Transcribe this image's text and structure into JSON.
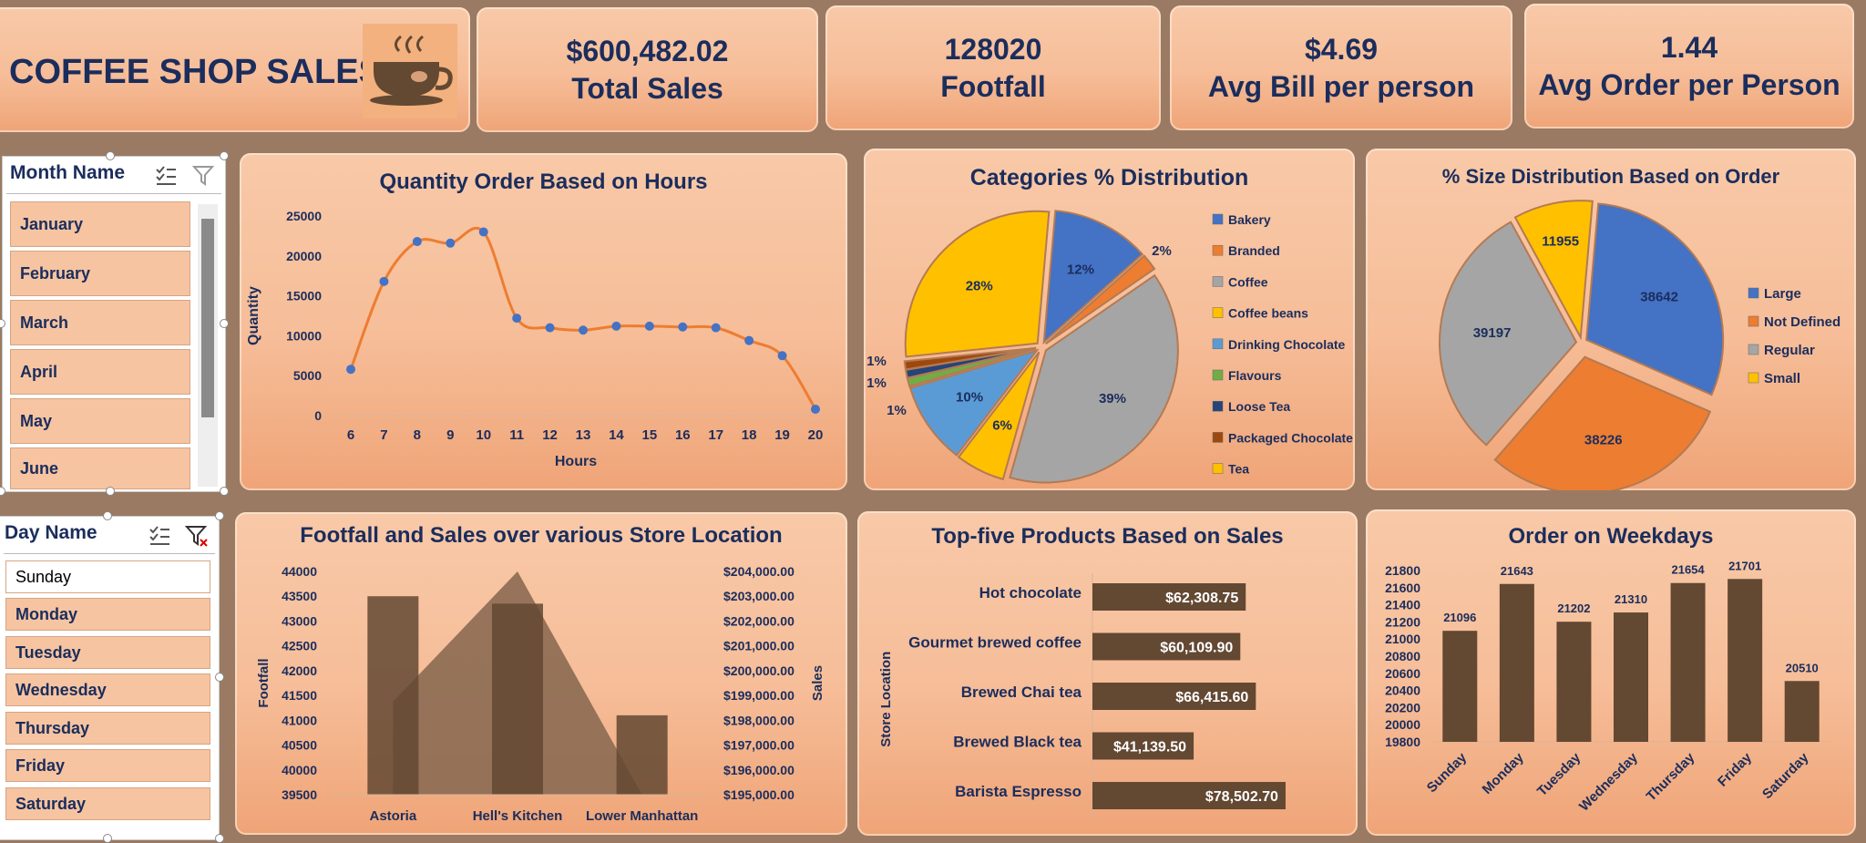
{
  "header": {
    "title": "COFFEE SHOP SALES"
  },
  "kpis": [
    {
      "value": "$600,482.02",
      "label": "Total Sales"
    },
    {
      "value": "128020",
      "label": "Footfall"
    },
    {
      "value": "$4.69",
      "label": "Avg Bill per person"
    },
    {
      "value": "1.44",
      "label": "Avg Order per Person"
    }
  ],
  "month_slicer": {
    "title": "Month Name",
    "items": [
      "January",
      "February",
      "March",
      "April",
      "May",
      "June"
    ]
  },
  "day_slicer": {
    "title": "Day Name",
    "items": [
      "Sunday",
      "Monday",
      "Tuesday",
      "Wednesday",
      "Thursday",
      "Friday",
      "Saturday"
    ]
  },
  "colors": {
    "accent": "#ed7d31",
    "navy": "#1b2d5c",
    "brown": "#634832"
  },
  "chart_data": [
    {
      "type": "line",
      "title": "Quantity Order Based on Hours",
      "xlabel": "Hours",
      "ylabel": "Quantity",
      "x": [
        6,
        7,
        8,
        9,
        10,
        11,
        12,
        13,
        14,
        15,
        16,
        17,
        18,
        19,
        20
      ],
      "values": [
        5800,
        16800,
        21800,
        21600,
        23000,
        12200,
        11000,
        10700,
        11200,
        11200,
        11100,
        11000,
        9400,
        7500,
        800
      ],
      "ylim": [
        0,
        25000
      ],
      "yticks": [
        0,
        5000,
        10000,
        15000,
        20000,
        25000
      ]
    },
    {
      "type": "pie",
      "title": "Categories % Distribution",
      "categories": [
        "Bakery",
        "Branded",
        "Coffee",
        "Coffee beans",
        "Drinking Chocolate",
        "Flavours",
        "Loose Tea",
        "Packaged Chocolate",
        "Tea"
      ],
      "values": [
        12,
        2,
        39,
        6,
        10,
        1,
        1,
        1,
        28
      ],
      "labels": [
        "12%",
        "2%",
        "39%",
        "6%",
        "10%",
        "1%",
        "1%",
        "1%",
        "28%"
      ],
      "colors": [
        "#4472c4",
        "#ed7d31",
        "#a5a5a5",
        "#ffc000",
        "#5b9bd5",
        "#70ad47",
        "#264478",
        "#9e480e",
        "#ffc000"
      ]
    },
    {
      "type": "pie",
      "title": "% Size Distribution Based on Order",
      "categories": [
        "Large",
        "Not Defined",
        "Regular",
        "Small"
      ],
      "values": [
        38642,
        38226,
        39197,
        11955
      ],
      "colors": [
        "#4472c4",
        "#ed7d31",
        "#a5a5a5",
        "#ffc000"
      ]
    },
    {
      "type": "bar",
      "title": "Footfall and Sales over various Store Location",
      "categories": [
        "Astoria",
        "Hell's Kitchen",
        "Lower Manhattan"
      ],
      "series": [
        {
          "name": "Footfall",
          "values": [
            43500,
            43350,
            41100
          ]
        },
        {
          "name": "Sales",
          "values": [
            198750,
            204000,
            195000
          ]
        }
      ],
      "ylabel": "Footfall",
      "y2label": "Sales",
      "yticks": [
        "44000",
        "43500",
        "43000",
        "42500",
        "42000",
        "41500",
        "41000",
        "40500",
        "40000",
        "39500"
      ],
      "y2ticks": [
        "$204,000.00",
        "$203,000.00",
        "$202,000.00",
        "$201,000.00",
        "$200,000.00",
        "$199,000.00",
        "$198,000.00",
        "$197,000.00",
        "$196,000.00",
        "$195,000.00"
      ],
      "ylim": [
        39500,
        44000
      ],
      "y2lim": [
        195000,
        204000
      ]
    },
    {
      "type": "bar",
      "title": "Top-five Products Based on Sales",
      "ylabel": "Store Location",
      "categories": [
        "Hot chocolate",
        "Gourmet brewed coffee",
        "Brewed Chai tea",
        "Brewed Black tea",
        "Barista Espresso"
      ],
      "values": [
        62308.75,
        60109.9,
        66415.6,
        41139.5,
        78502.7
      ],
      "labels": [
        "$62,308.75",
        "$60,109.90",
        "$66,415.60",
        "$41,139.50",
        "$78,502.70"
      ]
    },
    {
      "type": "bar",
      "title": "Order on Weekdays",
      "categories": [
        "Sunday",
        "Monday",
        "Tuesday",
        "Wednesday",
        "Thursday",
        "Friday",
        "Saturday"
      ],
      "values": [
        21096,
        21643,
        21202,
        21310,
        21654,
        21701,
        20510
      ],
      "ylim": [
        19800,
        21800
      ],
      "yticks": [
        19800,
        20000,
        20200,
        20400,
        20600,
        20800,
        21000,
        21200,
        21400,
        21600,
        21800
      ]
    }
  ]
}
